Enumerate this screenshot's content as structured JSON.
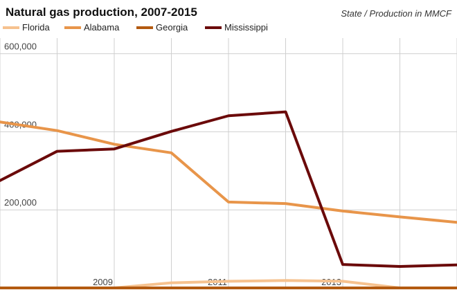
{
  "colors": {
    "Florida": "#f6c28f",
    "Alabama": "#e8954a",
    "Georgia": "#b35a10",
    "Mississippi": "#6b0a0a",
    "grid": "#cfcfcf",
    "axis_text": "#444444"
  },
  "chart_data": {
    "type": "line",
    "title": "Natural gas production, 2007-2015",
    "subtitle": "State / Production in MMCF",
    "xlabel": "",
    "ylabel": "",
    "x": [
      2007,
      2008,
      2009,
      2010,
      2011,
      2012,
      2013,
      2014,
      2015
    ],
    "xlim": [
      2007,
      2015
    ],
    "ylim": [
      0,
      640000
    ],
    "y_ticks": [
      200000,
      400000,
      600000
    ],
    "y_tick_labels": [
      "200,000",
      "400,000",
      "600,000"
    ],
    "x_ticks": [
      2009,
      2011,
      2013
    ],
    "x_tick_labels": [
      "2009",
      "2011",
      "2013"
    ],
    "grid": true,
    "legend_position": "top-left",
    "series": [
      {
        "name": "Florida",
        "values": [
          0,
          0,
          0,
          13000,
          17000,
          19000,
          17000,
          0,
          0
        ]
      },
      {
        "name": "Alabama",
        "values": [
          425000,
          403000,
          368000,
          346000,
          220000,
          216000,
          197000,
          182000,
          168000
        ]
      },
      {
        "name": "Georgia",
        "values": [
          0,
          0,
          0,
          0,
          0,
          0,
          0,
          0,
          0
        ]
      },
      {
        "name": "Mississippi",
        "values": [
          275000,
          350000,
          356000,
          401000,
          441000,
          451000,
          60000,
          55000,
          59000
        ]
      }
    ]
  }
}
